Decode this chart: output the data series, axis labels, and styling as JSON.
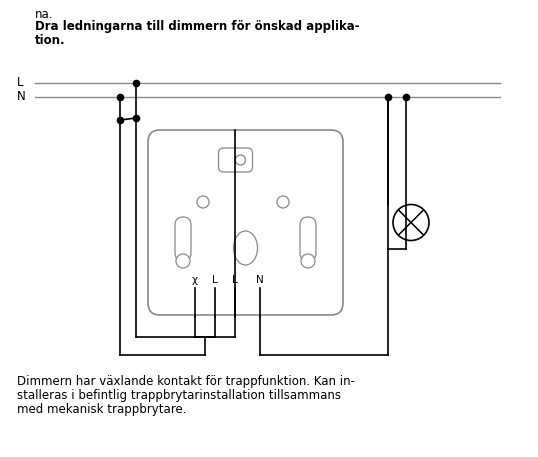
{
  "bg_color": "#ffffff",
  "line_color": "#000000",
  "gray_color": "#888888",
  "text_color": "#000000",
  "fig_width": 5.38,
  "fig_height": 4.57,
  "dpi": 100,
  "title_normal": "na.",
  "title_bold_1": "Dra ledningarna till dimmern för önskad applika-",
  "title_bold_2": "tion.",
  "L_label": "L",
  "N_label": "N",
  "terminal_labels": [
    "χ",
    "L",
    "L",
    "N"
  ],
  "footer_lines": [
    "Dimmern har växlande kontakt för trappfunktion. Kan in-",
    "stalleras i befintlig trappbrytarinstallation tillsammans",
    "med mekanisk trappbrytare."
  ]
}
